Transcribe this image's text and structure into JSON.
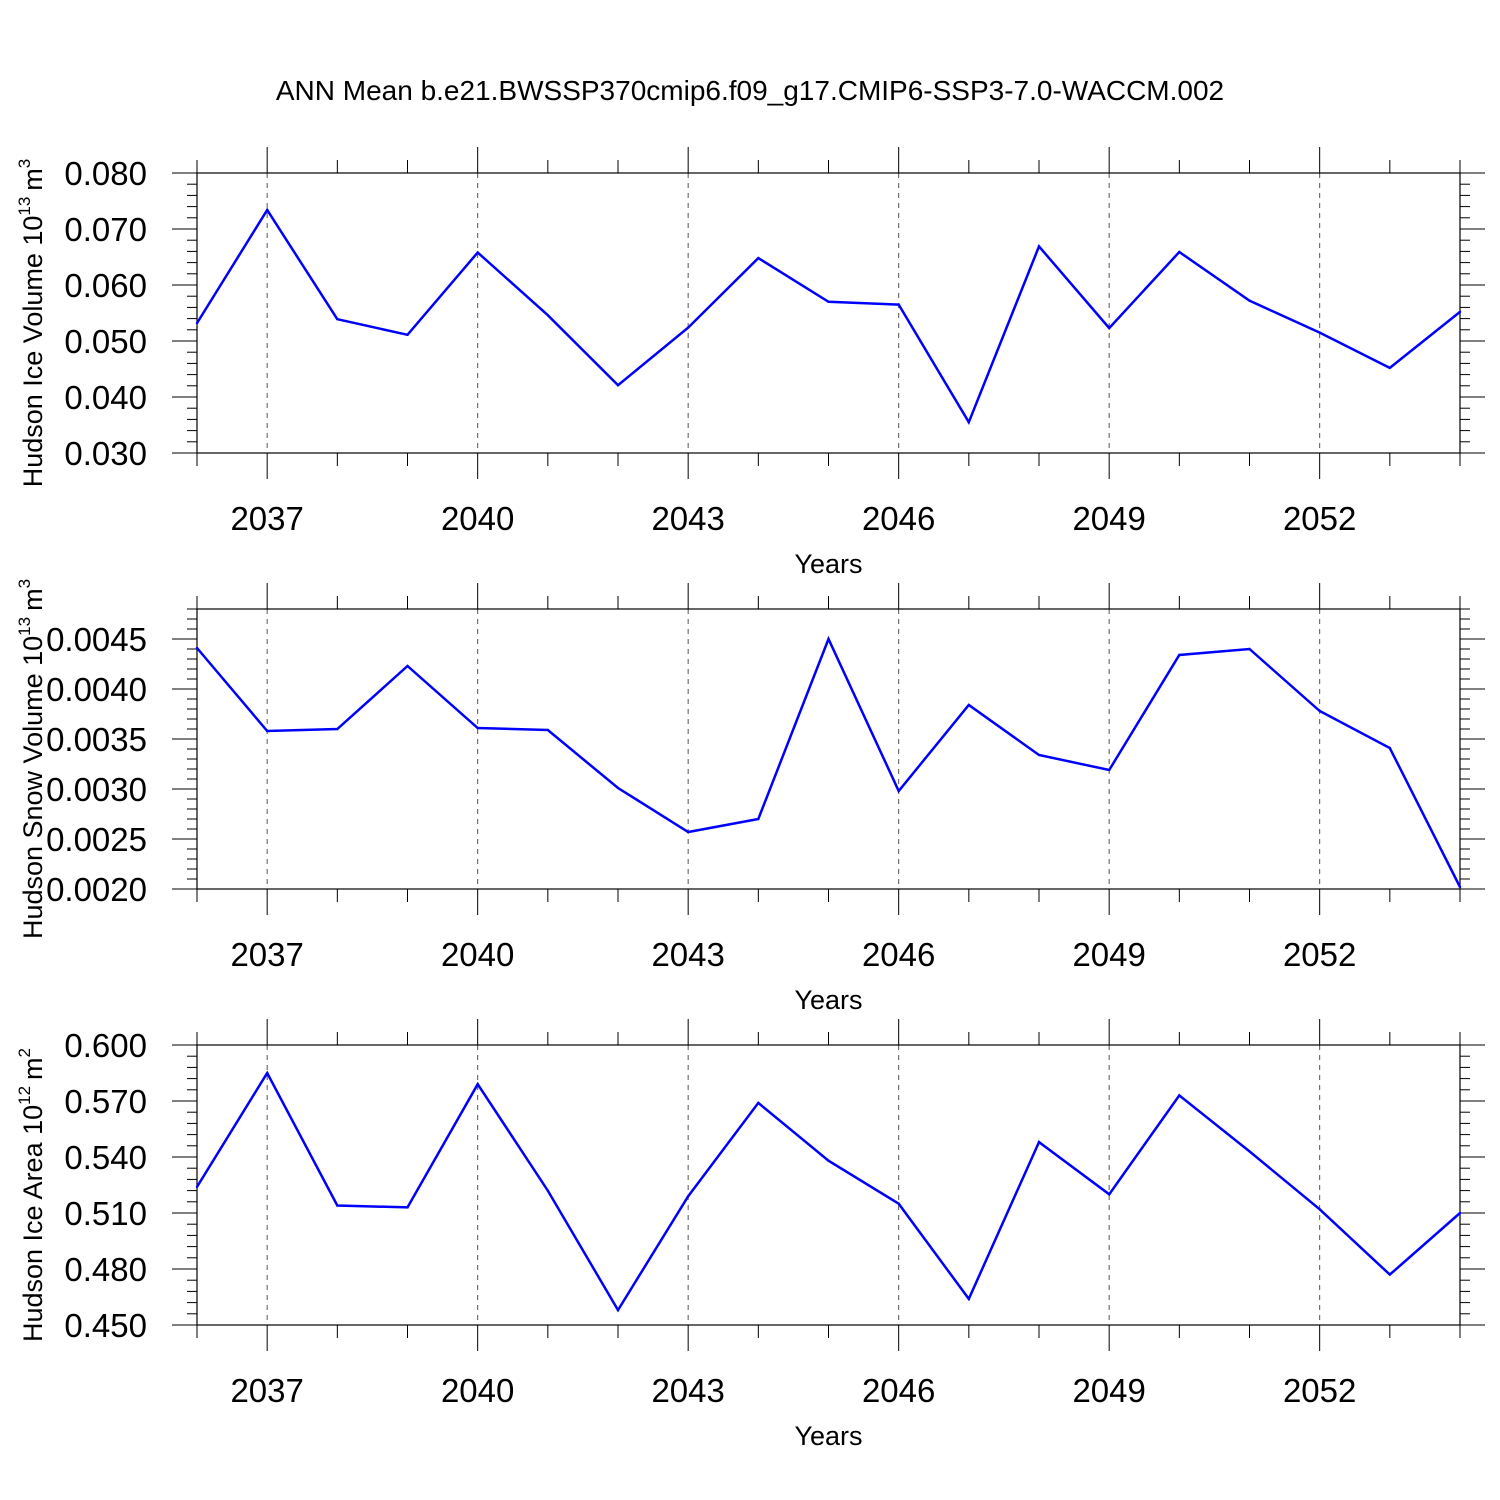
{
  "title": "ANN Mean b.e21.BWSSP370cmip6.f09_g17.CMIP6-SSP3-7.0-WACCM.002",
  "line_color": "#0000ff",
  "chart_data": [
    {
      "type": "line",
      "title": "ANN Mean b.e21.BWSSP370cmip6.f09_g17.CMIP6-SSP3-7.0-WACCM.002",
      "xlabel": "Years",
      "ylabel": {
        "text": "Hudson Ice Volume 10",
        "exponent": "13",
        "unit": "m",
        "unit_exponent": "3"
      },
      "xlim": [
        2036,
        2054
      ],
      "ylim": [
        0.03,
        0.08
      ],
      "xticks": [
        "2037",
        "2040",
        "2043",
        "2046",
        "2049",
        "2052"
      ],
      "xtick_values": [
        2037,
        2040,
        2043,
        2046,
        2049,
        2052
      ],
      "yticks": [
        "0.030",
        "0.040",
        "0.050",
        "0.060",
        "0.070",
        "0.080"
      ],
      "ytick_values": [
        0.03,
        0.04,
        0.05,
        0.06,
        0.07,
        0.08
      ],
      "grid": "vertical dashed at major x ticks",
      "x": [
        2036,
        2037,
        2038,
        2039,
        2040,
        2041,
        2042,
        2043,
        2044,
        2045,
        2046,
        2047,
        2048,
        2049,
        2050,
        2051,
        2052,
        2053,
        2054
      ],
      "y": [
        0.0532,
        0.0734,
        0.0539,
        0.0511,
        0.0658,
        0.0546,
        0.0421,
        0.0524,
        0.0648,
        0.057,
        0.0565,
        0.0355,
        0.0669,
        0.0523,
        0.0659,
        0.0572,
        0.0515,
        0.0452,
        0.0552
      ]
    },
    {
      "type": "line",
      "xlabel": "Years",
      "ylabel": {
        "text": "Hudson Snow Volume 10",
        "exponent": "13",
        "unit": "m",
        "unit_exponent": "3"
      },
      "xlim": [
        2036,
        2054
      ],
      "ylim": [
        0.002,
        0.0048
      ],
      "xticks": [
        "2037",
        "2040",
        "2043",
        "2046",
        "2049",
        "2052"
      ],
      "xtick_values": [
        2037,
        2040,
        2043,
        2046,
        2049,
        2052
      ],
      "yticks": [
        "0.0020",
        "0.0025",
        "0.0030",
        "0.0035",
        "0.0040",
        "0.0045"
      ],
      "ytick_values": [
        0.002,
        0.0025,
        0.003,
        0.0035,
        0.004,
        0.0045
      ],
      "grid": "vertical dashed at major x ticks",
      "x": [
        2036,
        2037,
        2038,
        2039,
        2040,
        2041,
        2042,
        2043,
        2044,
        2045,
        2046,
        2047,
        2048,
        2049,
        2050,
        2051,
        2052,
        2053,
        2054
      ],
      "y": [
        0.00441,
        0.00358,
        0.0036,
        0.00423,
        0.00361,
        0.00359,
        0.00301,
        0.00257,
        0.0027,
        0.0045,
        0.00298,
        0.00384,
        0.00334,
        0.00319,
        0.00434,
        0.0044,
        0.00378,
        0.00341,
        0.00202
      ]
    },
    {
      "type": "line",
      "xlabel": "Years",
      "ylabel": {
        "text": "Hudson Ice Area 10",
        "exponent": "12",
        "unit": "m",
        "unit_exponent": "2"
      },
      "xlim": [
        2036,
        2054
      ],
      "ylim": [
        0.45,
        0.6
      ],
      "xticks": [
        "2037",
        "2040",
        "2043",
        "2046",
        "2049",
        "2052"
      ],
      "xtick_values": [
        2037,
        2040,
        2043,
        2046,
        2049,
        2052
      ],
      "yticks": [
        "0.450",
        "0.480",
        "0.510",
        "0.540",
        "0.570",
        "0.600"
      ],
      "ytick_values": [
        0.45,
        0.48,
        0.51,
        0.54,
        0.57,
        0.6
      ],
      "grid": "vertical dashed at major x ticks",
      "x": [
        2036,
        2037,
        2038,
        2039,
        2040,
        2041,
        2042,
        2043,
        2044,
        2045,
        2046,
        2047,
        2048,
        2049,
        2050,
        2051,
        2052,
        2053,
        2054
      ],
      "y": [
        0.524,
        0.585,
        0.514,
        0.513,
        0.579,
        0.522,
        0.458,
        0.519,
        0.569,
        0.538,
        0.515,
        0.464,
        0.548,
        0.52,
        0.573,
        0.543,
        0.512,
        0.477,
        0.51
      ]
    }
  ]
}
